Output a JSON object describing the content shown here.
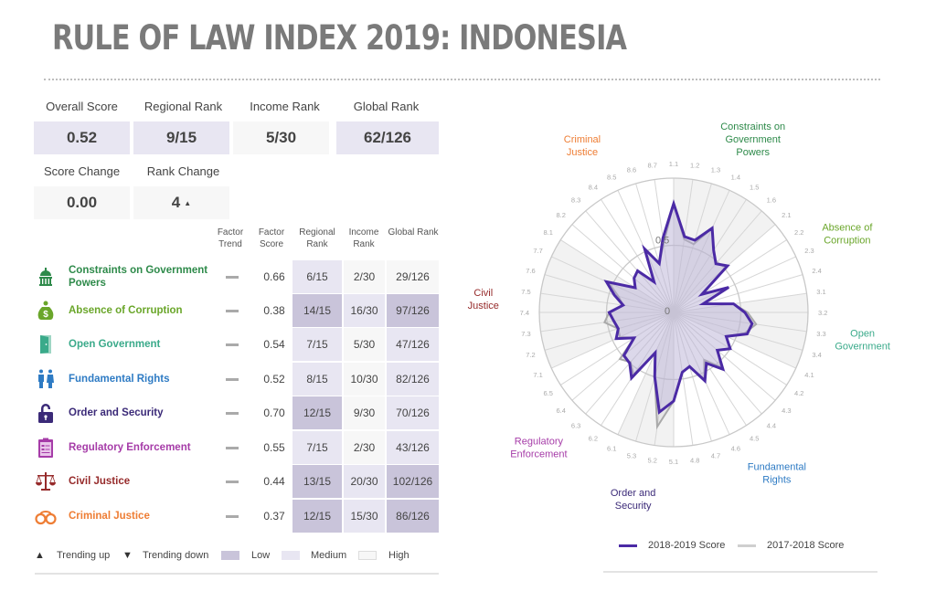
{
  "title": "RULE OF LAW INDEX 2019: INDONESIA",
  "summary": {
    "items": [
      {
        "label": "Overall Score",
        "value": "0.52",
        "level": "med"
      },
      {
        "label": "Regional Rank",
        "value": "9/15",
        "level": "med"
      },
      {
        "label": "Income Rank",
        "value": "5/30",
        "level": "high"
      },
      {
        "label": "Global Rank",
        "value": "62/126",
        "level": "med"
      }
    ],
    "changes": [
      {
        "label": "Score Change",
        "value": "0.00"
      },
      {
        "label": "Rank Change",
        "value": "4",
        "trend": "▲"
      }
    ]
  },
  "table": {
    "headers": {
      "trend": "Factor Trend",
      "score": "Factor Score",
      "regional": "Regional Rank",
      "income": "Income Rank",
      "global": "Global Rank"
    },
    "rows": [
      {
        "icon": "capitol-icon",
        "name": "Constraints on Government Powers",
        "color": "#2e8a4a",
        "trend": "—",
        "score": "0.66",
        "regional": "6/15",
        "income": "2/30",
        "global": "29/126",
        "levels": [
          "med",
          "high",
          "high"
        ]
      },
      {
        "icon": "money-bag-icon",
        "name": "Absence of Corruption",
        "color": "#6aa62a",
        "trend": "—",
        "score": "0.38",
        "regional": "14/15",
        "income": "16/30",
        "global": "97/126",
        "levels": [
          "low",
          "med",
          "low"
        ]
      },
      {
        "icon": "door-icon",
        "name": "Open Government",
        "color": "#3aaa8a",
        "trend": "—",
        "score": "0.54",
        "regional": "7/15",
        "income": "5/30",
        "global": "47/126",
        "levels": [
          "med",
          "high",
          "med"
        ]
      },
      {
        "icon": "people-icon",
        "name": "Fundamental Rights",
        "color": "#2e7bc4",
        "trend": "—",
        "score": "0.52",
        "regional": "8/15",
        "income": "10/30",
        "global": "82/126",
        "levels": [
          "med",
          "high",
          "med"
        ]
      },
      {
        "icon": "padlock-icon",
        "name": "Order and Security",
        "color": "#3b2a78",
        "trend": "—",
        "score": "0.70",
        "regional": "12/15",
        "income": "9/30",
        "global": "70/126",
        "levels": [
          "low",
          "high",
          "med"
        ]
      },
      {
        "icon": "clipboard-icon",
        "name": "Regulatory Enforcement",
        "color": "#a63ca8",
        "trend": "—",
        "score": "0.55",
        "regional": "7/15",
        "income": "2/30",
        "global": "43/126",
        "levels": [
          "med",
          "high",
          "med"
        ]
      },
      {
        "icon": "scales-icon",
        "name": "Civil Justice",
        "color": "#962a2a",
        "trend": "—",
        "score": "0.44",
        "regional": "13/15",
        "income": "20/30",
        "global": "102/126",
        "levels": [
          "low",
          "med",
          "low"
        ]
      },
      {
        "icon": "handcuffs-icon",
        "name": "Criminal Justice",
        "color": "#ee7d34",
        "trend": "—",
        "score": "0.37",
        "regional": "12/15",
        "income": "15/30",
        "global": "86/126",
        "levels": [
          "low",
          "med",
          "low"
        ]
      }
    ]
  },
  "legend": {
    "trending_up": "Trending up",
    "trending_down": "Trending down",
    "low": "Low",
    "medium": "Medium",
    "high": "High",
    "up_glyph": "▲",
    "down_glyph": "▼"
  },
  "colors": {
    "low": "#c9c4da",
    "medium": "#e8e6f2",
    "high": "#f7f7f7",
    "series_2019": "#4b2aa5",
    "series_2018": "#a9a9a9"
  },
  "chart_data": {
    "type": "radar",
    "title": "",
    "rings": [
      0,
      0.5,
      1
    ],
    "ring_labels": [
      "0",
      "0.5"
    ],
    "categories": [
      "1.1",
      "1.2",
      "1.3",
      "1.4",
      "1.5",
      "1.6",
      "2.1",
      "2.2",
      "2.3",
      "2.4",
      "3.1",
      "3.2",
      "3.3",
      "3.4",
      "4.1",
      "4.2",
      "4.3",
      "4.4",
      "4.5",
      "4.6",
      "4.7",
      "4.8",
      "5.1",
      "5.2",
      "5.3",
      "6.1",
      "6.2",
      "6.3",
      "6.4",
      "6.5",
      "7.1",
      "7.2",
      "7.3",
      "7.4",
      "7.5",
      "7.6",
      "7.7",
      "8.1",
      "8.2",
      "8.3",
      "8.4",
      "8.5",
      "8.6",
      "8.7"
    ],
    "factor_groups": [
      {
        "label": "Constraints on Government Powers",
        "color": "#2e8a4a",
        "start": 0,
        "count": 6,
        "shaded": true
      },
      {
        "label": "Absence of Corruption",
        "color": "#6aa62a",
        "start": 6,
        "count": 4,
        "shaded": false
      },
      {
        "label": "Open Government",
        "color": "#3aaa8a",
        "start": 10,
        "count": 4,
        "shaded": true
      },
      {
        "label": "Fundamental Rights",
        "color": "#2e7bc4",
        "start": 14,
        "count": 8,
        "shaded": false
      },
      {
        "label": "Order and Security",
        "color": "#3b2a78",
        "start": 22,
        "count": 3,
        "shaded": true
      },
      {
        "label": "Regulatory Enforcement",
        "color": "#a63ca8",
        "start": 25,
        "count": 5,
        "shaded": false
      },
      {
        "label": "Civil Justice",
        "color": "#962a2a",
        "start": 30,
        "count": 7,
        "shaded": true
      },
      {
        "label": "Criminal Justice",
        "color": "#ee7d34",
        "start": 37,
        "count": 7,
        "shaded": false
      }
    ],
    "series": [
      {
        "name": "2018-2019 Score",
        "color": "#4b2aa5",
        "values": [
          0.81,
          0.57,
          0.56,
          0.69,
          0.55,
          0.48,
          0.53,
          0.25,
          0.45,
          0.23,
          0.45,
          0.53,
          0.59,
          0.57,
          0.43,
          0.5,
          0.43,
          0.56,
          0.45,
          0.56,
          0.42,
          0.45,
          0.66,
          0.75,
          0.5,
          0.33,
          0.58,
          0.5,
          0.49,
          0.35,
          0.47,
          0.43,
          0.45,
          0.48,
          0.38,
          0.46,
          0.55,
          0.34,
          0.39,
          0.41,
          0.27,
          0.52,
          0.38,
          0.56
        ]
      },
      {
        "name": "2017-2018 Score",
        "color": "#a9a9a9",
        "values": [
          0.81,
          0.55,
          0.53,
          0.69,
          0.55,
          0.48,
          0.53,
          0.25,
          0.45,
          0.23,
          0.45,
          0.55,
          0.62,
          0.55,
          0.43,
          0.5,
          0.43,
          0.54,
          0.42,
          0.55,
          0.42,
          0.45,
          0.66,
          0.86,
          0.5,
          0.33,
          0.55,
          0.49,
          0.53,
          0.35,
          0.44,
          0.43,
          0.52,
          0.48,
          0.38,
          0.43,
          0.53,
          0.34,
          0.39,
          0.41,
          0.27,
          0.52,
          0.38,
          0.52
        ]
      }
    ],
    "legend_position": "bottom-right"
  }
}
